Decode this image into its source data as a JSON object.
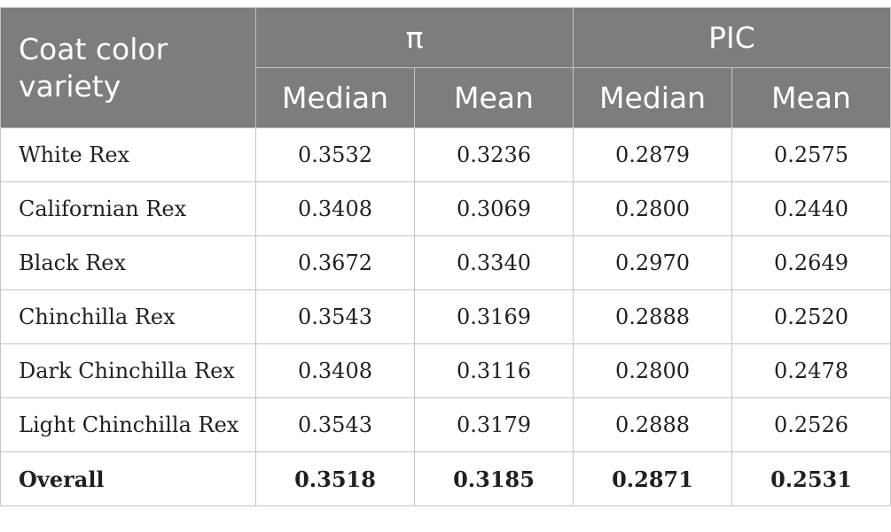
{
  "table": {
    "corner_header": "Coat color variety",
    "group_headers": [
      "π",
      "PIC"
    ],
    "sub_headers": [
      "Median",
      "Mean",
      "Median",
      "Mean"
    ],
    "rows": [
      {
        "label": "White Rex",
        "values": [
          "0.3532",
          "0.3236",
          "0.2879",
          "0.2575"
        ]
      },
      {
        "label": "Californian Rex",
        "values": [
          "0.3408",
          "0.3069",
          "0.2800",
          "0.2440"
        ]
      },
      {
        "label": "Black Rex",
        "values": [
          "0.3672",
          "0.3340",
          "0.2970",
          "0.2649"
        ]
      },
      {
        "label": "Chinchilla Rex",
        "values": [
          "0.3543",
          "0.3169",
          "0.2888",
          "0.2520"
        ]
      },
      {
        "label": "Dark Chinchilla Rex",
        "values": [
          "0.3408",
          "0.3116",
          "0.2800",
          "0.2478"
        ]
      },
      {
        "label": "Light Chinchilla Rex",
        "values": [
          "0.3543",
          "0.3179",
          "0.2888",
          "0.2526"
        ]
      },
      {
        "label": "Overall",
        "values": [
          "0.3518",
          "0.3185",
          "0.2871",
          "0.2531"
        ]
      }
    ]
  },
  "colors": {
    "header_background": "#7c7d7c",
    "header_text": "#ffffff",
    "grid_lines": "#c4c4c4",
    "body_text": "#231f20"
  }
}
